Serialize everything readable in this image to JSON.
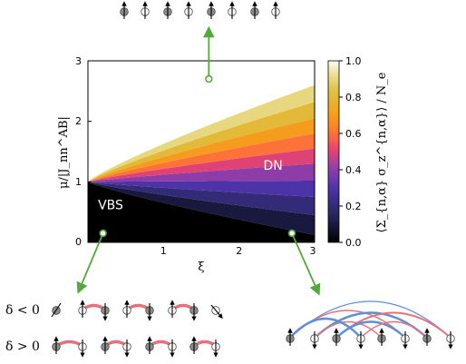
{
  "chart_data": {
    "type": "heatmap",
    "xlabel": "ξ",
    "ylabel": "μ/|J_nn^AB|",
    "xlim": [
      0,
      3
    ],
    "ylim": [
      0,
      3
    ],
    "x_ticks": [
      "1",
      "2",
      "3"
    ],
    "y_ticks": [
      "0",
      "1",
      "2",
      "3"
    ],
    "colorbar": {
      "label": "⟨Σ_{n,α} σ_z^{n,α}⟩ / N_e",
      "range": [
        0.0,
        1.0
      ],
      "ticks": [
        "0.0",
        "0.2",
        "0.4",
        "0.6",
        "0.8",
        "1.0"
      ],
      "colormap": "CMRmap"
    },
    "regions": [
      {
        "label": "VBS",
        "x": 0.3,
        "y": 0.55,
        "text_color": "#ffffff"
      },
      {
        "label": "DN",
        "x": 2.45,
        "y": 1.2,
        "text_color": "#ffffff"
      }
    ],
    "contours": [
      {
        "level": 0.0,
        "y_at_xi_3": 0.12,
        "tail": 0.12
      },
      {
        "level": 0.1,
        "y_at_xi_3": 0.45,
        "tail": 0.45
      },
      {
        "level": 0.2,
        "y_at_xi_3": 0.75,
        "tail": 0.75
      },
      {
        "level": 0.3,
        "y_at_xi_3": 1.02,
        "tail": 1.02
      },
      {
        "level": 0.4,
        "y_at_xi_3": 1.3,
        "tail": 1.3
      },
      {
        "level": 0.5,
        "y_at_xi_3": 1.55,
        "tail": 1.55
      },
      {
        "level": 0.6,
        "y_at_xi_3": 1.8,
        "tail": 1.8
      },
      {
        "level": 0.7,
        "y_at_xi_3": 2.05,
        "tail": 2.05
      },
      {
        "level": 0.8,
        "y_at_xi_3": 2.32,
        "tail": 2.32
      },
      {
        "level": 0.9,
        "y_at_xi_3": 2.6,
        "tail": 2.6
      },
      {
        "level": 1.0,
        "y_at_xi_3": 2.88,
        "tail": 2.88
      }
    ],
    "markers": [
      {
        "name": "top-state",
        "x": 1.6,
        "y": 2.7
      },
      {
        "name": "vbs-state",
        "x": 0.2,
        "y": 0.15
      },
      {
        "name": "dn-state",
        "x": 2.7,
        "y": 0.15
      }
    ]
  },
  "panels": {
    "delta_negative": "δ < 0",
    "delta_positive": "δ > 0"
  },
  "colors": {
    "arrow_green": "#55a83a",
    "bond_red": "#e8707a",
    "bond_blue": "#5b8fd8",
    "site_gray": "#8c8c8c"
  }
}
